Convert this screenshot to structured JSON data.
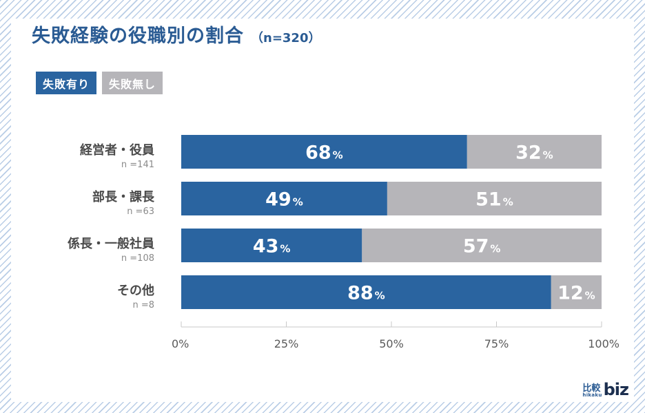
{
  "title": "失敗経験の役職別の割合",
  "subtitle": "（n=320）",
  "legend": [
    {
      "label": "失敗有り",
      "color": "#2a64a0"
    },
    {
      "label": "失敗無し",
      "color": "#b6b5b9"
    }
  ],
  "brand": {
    "kanji": "比較",
    "small": "hikaku",
    "biz": "biz"
  },
  "chart_data": {
    "type": "bar",
    "orientation": "horizontal",
    "stacked": true,
    "categories": [
      "経営者・役員",
      "部長・課長",
      "係長・一般社員",
      "その他"
    ],
    "category_n": [
      "n =141",
      "n =63",
      "n =108",
      "n =8"
    ],
    "series": [
      {
        "name": "失敗有り",
        "values": [
          68,
          49,
          43,
          88
        ],
        "color": "#2a64a0"
      },
      {
        "name": "失敗無し",
        "values": [
          32,
          51,
          57,
          12
        ],
        "color": "#b6b5b9"
      }
    ],
    "value_suffix": "%",
    "xlim": [
      0,
      100
    ],
    "x_ticks": [
      "0%",
      "25%",
      "50%",
      "75%",
      "100%"
    ],
    "title": "失敗経験の役職別の割合",
    "xlabel": "",
    "ylabel": "",
    "grid": false,
    "legend_position": "top-left"
  }
}
